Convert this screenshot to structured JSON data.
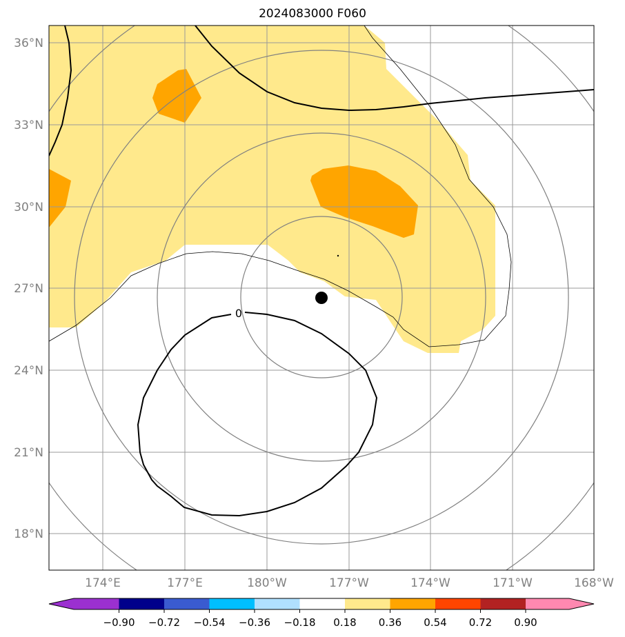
{
  "title": "2024083000 F060",
  "lat_labels": [
    "36°N",
    "33°N",
    "30°N",
    "27°N",
    "24°N",
    "21°N",
    "18°N"
  ],
  "lon_labels": [
    "174°E",
    "177°E",
    "180°W",
    "177°W",
    "174°W",
    "171°W",
    "168°W"
  ],
  "contour_label": "0",
  "colorbar": {
    "tick_labels": [
      "−0.90",
      "−0.72",
      "−0.54",
      "−0.36",
      "−0.18",
      "0.18",
      "0.36",
      "0.54",
      "0.72",
      "0.90"
    ],
    "colors": [
      "#9b30d0",
      "#00008b",
      "#3a5bd0",
      "#00bfff",
      "#b0e0ff",
      "#ffffff",
      "#ffe98c",
      "#ffa500",
      "#ff4500",
      "#b22222",
      "#ff88b0"
    ]
  },
  "colors": {
    "shade_light": "#ffe98c",
    "shade_dark": "#ffa500",
    "grid": "#999999",
    "range_rings": "#808080",
    "contour": "#000000"
  }
}
